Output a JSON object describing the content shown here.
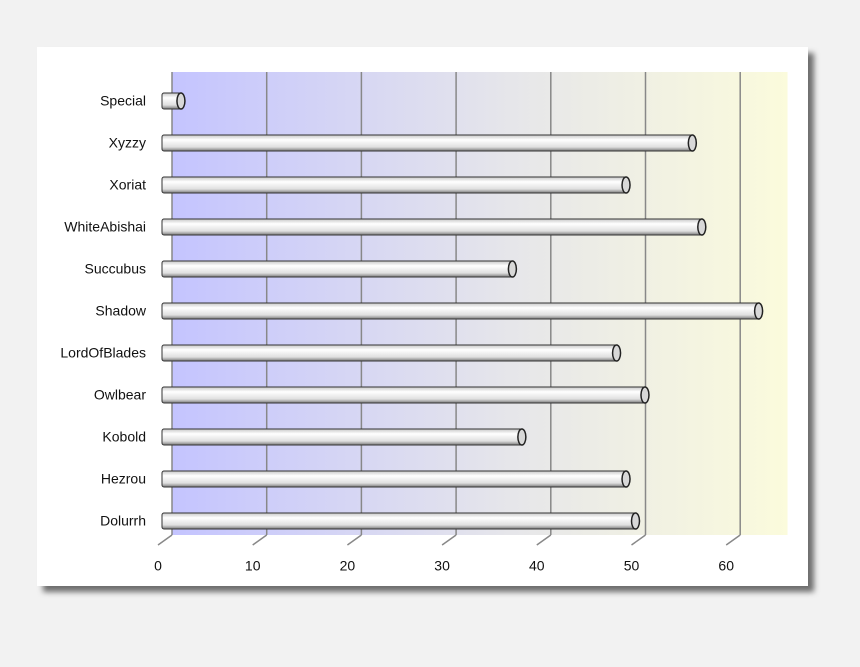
{
  "chart_data": {
    "type": "bar",
    "orientation": "horizontal",
    "categories": [
      "Special",
      "Xyzzy",
      "Xoriat",
      "WhiteAbishai",
      "Succubus",
      "Shadow",
      "LordOfBlades",
      "Owlbear",
      "Kobold",
      "Hezrou",
      "Dolurrh"
    ],
    "values": [
      2,
      56,
      49,
      57,
      37,
      63,
      48,
      51,
      38,
      49,
      50
    ],
    "color": "#e6e6e6",
    "xlim": [
      0,
      65
    ],
    "xticks": [
      0,
      10,
      20,
      30,
      40,
      50,
      60
    ],
    "grid": true
  }
}
